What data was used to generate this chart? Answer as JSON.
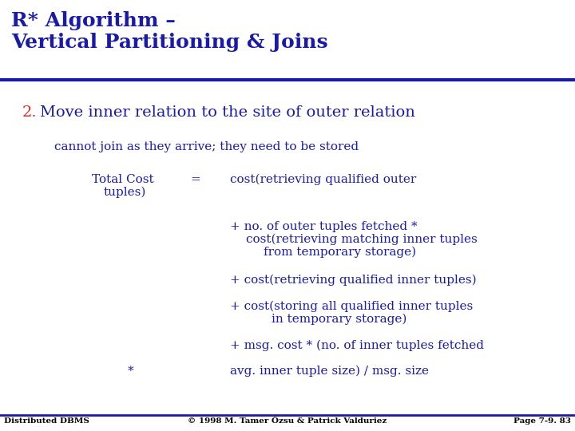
{
  "title_line1": "R* Algorithm –",
  "title_line2": "Vertical Partitioning & Joins",
  "title_color": "#1a1aaa",
  "header_bar_color": "#1a1aaa",
  "background_color": "#ffffff",
  "point2_number": "2.",
  "point2_number_color": "#cc3333",
  "point2_text": "Move inner relation to the site of outer relation",
  "point2_color": "#1a1aaa",
  "line1": "cannot join as they arrive; they need to be stored",
  "body_color": "#1a1aaa",
  "label_left1": "Total Cost",
  "label_left2": "tuples)",
  "label_color": "#1a1aaa",
  "eq_sign": "=",
  "cost_line1": "cost(retrieving qualified outer",
  "cost_line2": "+ no. of outer tuples fetched *",
  "cost_line3": "cost(retrieving matching inner tuples",
  "cost_line4": "from temporary storage)",
  "cost_line5": "+ cost(retrieving qualified inner tuples)",
  "cost_line6": "+ cost(storing all qualified inner tuples",
  "cost_line7": "in temporary storage)",
  "cost_line8": "+ msg. cost * (no. of inner tuples fetched",
  "cost_line9": "avg. inner tuple size) / msg. size",
  "asterisk": "*",
  "footer_left": "Distributed DBMS",
  "footer_center": "© 1998 M. Tamer Özsu & Patrick Valduriez",
  "footer_right": "Page 7-9. 83",
  "footer_color": "#000000",
  "footer_bar_color": "#1a1aaa"
}
